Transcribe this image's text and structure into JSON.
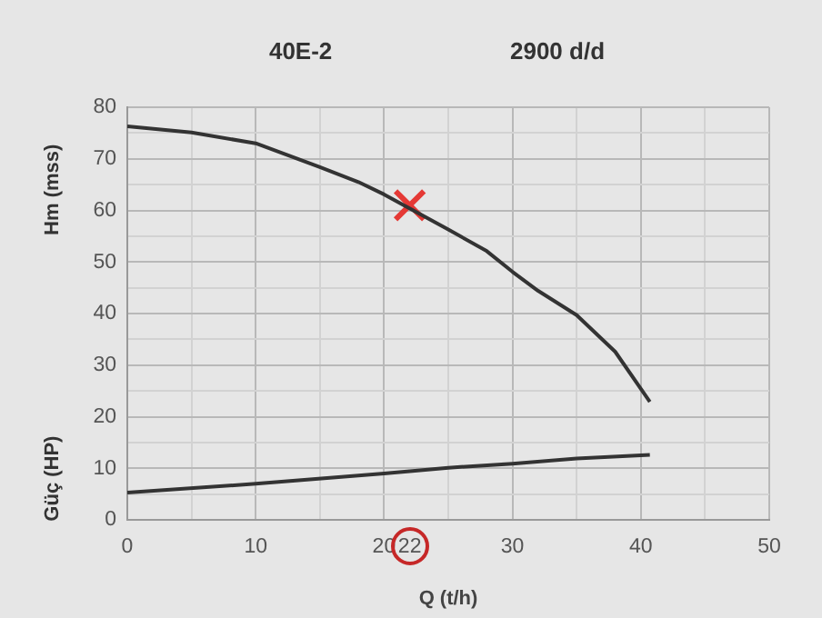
{
  "chart_data": {
    "type": "line",
    "title": "40E-2",
    "subtitle": "2900 d/d",
    "xlabel": "Q (t/h)",
    "ylabel": "Hm (mss)",
    "annotations": [
      "Güç (HP)"
    ],
    "xlim": [
      0,
      50
    ],
    "xticks": [
      0,
      {
        "value": 5,
        "label": null
      },
      10,
      {
        "value": 15,
        "label": null
      },
      20,
      22,
      {
        "value": 25,
        "label": null
      },
      30,
      {
        "value": 35,
        "label": null
      },
      40,
      {
        "value": 45,
        "label": null
      },
      50
    ],
    "ylim": [
      0,
      80
    ],
    "yticks": [
      0,
      {
        "value": 5,
        "label": null
      },
      10,
      {
        "value": 15,
        "label": null
      },
      20,
      {
        "value": 25,
        "label": null
      },
      30,
      {
        "value": 35,
        "label": null
      },
      40,
      {
        "value": 45,
        "label": null
      },
      50,
      {
        "value": 55,
        "label": null
      },
      60,
      {
        "value": 65,
        "label": null
      },
      70,
      {
        "value": 75,
        "label": null
      },
      80
    ],
    "grid": true,
    "legend": false,
    "marker": "none",
    "line_style": "solid",
    "series": [
      {
        "color": "#333333",
        "x": [
          0,
          5,
          10,
          15,
          18,
          20,
          25,
          28,
          30,
          32,
          35,
          38,
          40.7
        ],
        "values": [
          76.3,
          75.1,
          73.0,
          68.4,
          65.5,
          63.1,
          56.3,
          52.1,
          48.1,
          44.4,
          39.7,
          32.6,
          22.9
        ]
      },
      {
        "color": "#333333",
        "x": [
          0,
          10,
          20,
          25,
          30,
          35,
          40.7
        ],
        "values": [
          5.3,
          7.0,
          9.0,
          10.1,
          10.9,
          11.9,
          12.6
        ]
      },
      {
        "type": "scatter",
        "marker": "cross",
        "color": "#e53935",
        "x": [
          22
        ],
        "values": [
          61
        ]
      }
    ]
  }
}
